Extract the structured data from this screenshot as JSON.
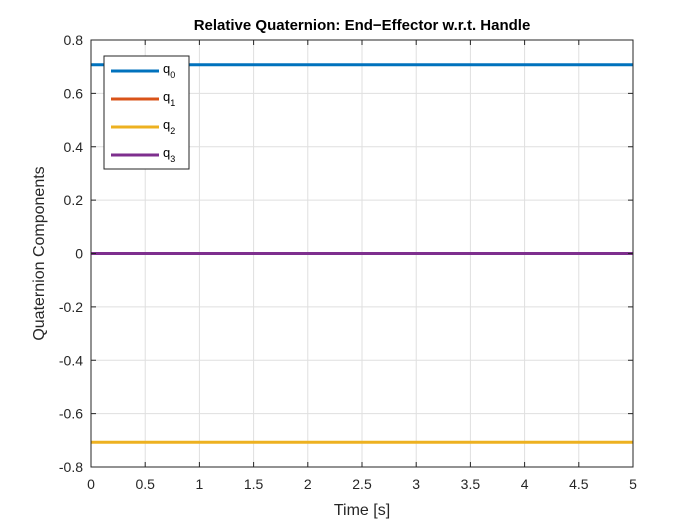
{
  "chart_data": {
    "type": "line",
    "title": "Relative Quaternion: End−Effector w.r.t. Handle",
    "xlabel": "Time [s]",
    "ylabel": "Quaternion Components",
    "xlim": [
      0,
      5
    ],
    "ylim": [
      -0.8,
      0.8
    ],
    "xticks": [
      0,
      0.5,
      1,
      1.5,
      2,
      2.5,
      3,
      3.5,
      4,
      4.5,
      5
    ],
    "xtick_labels": [
      "0",
      "0.5",
      "1",
      "1.5",
      "2",
      "2.5",
      "3",
      "3.5",
      "4",
      "4.5",
      "5"
    ],
    "yticks": [
      -0.8,
      -0.6,
      -0.4,
      -0.2,
      0,
      0.2,
      0.4,
      0.6,
      0.8
    ],
    "ytick_labels": [
      "-0.8",
      "-0.6",
      "-0.4",
      "-0.2",
      "0",
      "0.2",
      "0.4",
      "0.6",
      "0.8"
    ],
    "grid": true,
    "legend_position": "top-left",
    "series": [
      {
        "name": "q",
        "subscript": "0",
        "color": "#0072BD",
        "x": [
          0,
          5
        ],
        "y": [
          0.7071,
          0.7071
        ]
      },
      {
        "name": "q",
        "subscript": "1",
        "color": "#D95319",
        "x": [
          0,
          5
        ],
        "y": [
          0,
          0
        ]
      },
      {
        "name": "q",
        "subscript": "2",
        "color": "#EDB120",
        "x": [
          0,
          5
        ],
        "y": [
          -0.7071,
          -0.7071
        ]
      },
      {
        "name": "q",
        "subscript": "3",
        "color": "#7E2F8E",
        "x": [
          0,
          5
        ],
        "y": [
          0,
          0
        ]
      }
    ]
  }
}
